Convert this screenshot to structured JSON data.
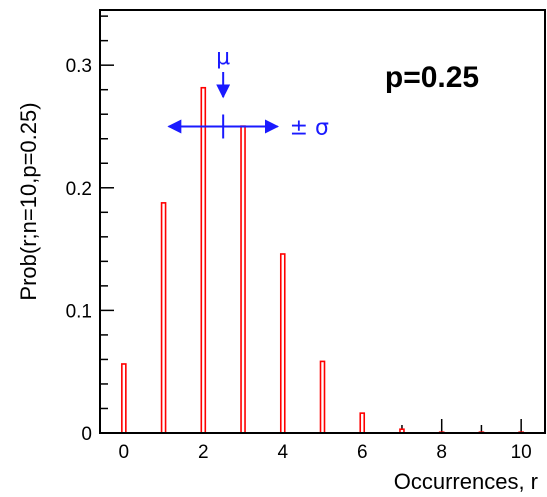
{
  "chart_data": {
    "type": "bar",
    "x": [
      0,
      1,
      2,
      3,
      4,
      5,
      6,
      7,
      8,
      9,
      10
    ],
    "values": [
      0.0563,
      0.1877,
      0.2816,
      0.2503,
      0.146,
      0.0584,
      0.0162,
      0.0031,
      0.0004,
      0.0,
      0.0
    ],
    "xlabel": "Occurrences, r",
    "ylabel": "Prob(r;n=10,p=0.25)",
    "xlim": [
      -0.6,
      10.6
    ],
    "ylim": [
      0,
      0.345
    ],
    "x_ticks": [
      "0",
      "2",
      "4",
      "6",
      "8",
      "10"
    ],
    "y_ticks": [
      "0",
      "0.1",
      "0.2",
      "0.3"
    ],
    "grid": false,
    "bar_color": "#ff0000",
    "annotations": {
      "p_label": "p=0.25",
      "mu_label": "μ",
      "mu_value": 2.5,
      "sigma_label": "± σ",
      "sigma_value": 1.37,
      "color": "#1a1aff"
    }
  }
}
